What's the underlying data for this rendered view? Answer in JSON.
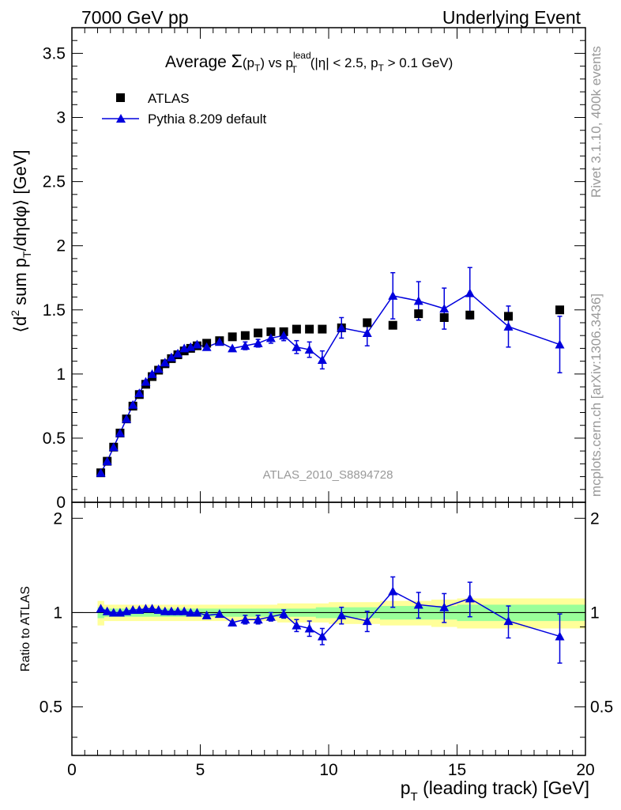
{
  "header": {
    "left": "7000 GeV pp",
    "right": "Underlying Event"
  },
  "side_labels": {
    "rivet": "Rivet 3.1.10,  400k events",
    "mcplots": "mcplots.cern.ch [arXiv:1306.3436]"
  },
  "colors": {
    "data": "#000000",
    "mc": "#0000dd",
    "band_inner": "#99ff99",
    "band_outer": "#ffff99"
  },
  "chart_data": [
    {
      "type": "scatter",
      "title": "Average Σ(pT) vs pT lead (|η| < 2.5, pT > 0.1 GeV)",
      "title_parts": {
        "prefix": "Average ",
        "sigma": "Σ",
        "sigma_arg": "(p",
        "sigma_sub": "T",
        "sigma_close": ")",
        "vs": " vs p",
        "lead_sup": "lead",
        "lead_sub": "T",
        "cut_a": " (|η| < 2.5, p",
        "cut_sub": "T",
        "cut_b": " > 0.1 GeV)"
      },
      "ylabel": "⟨d² sum pT/dηdφ⟩ [GeV]",
      "ylabel_parts": {
        "open": "⟨d",
        "sup": "2",
        "mid": " sum p",
        "sub": "T",
        "close": "/dηdφ⟩ [GeV]"
      },
      "watermark": "ATLAS_2010_S8894728",
      "xlim": [
        0,
        20
      ],
      "ylim": [
        0,
        3.7
      ],
      "yticks": [
        "0",
        "0.5",
        "1",
        "1.5",
        "2",
        "2.5",
        "3",
        "3.5"
      ],
      "legend": {
        "data": "ATLAS",
        "mc": "Pythia 8.209 default"
      },
      "series": [
        {
          "name": "ATLAS",
          "x": [
            1.125,
            1.375,
            1.625,
            1.875,
            2.125,
            2.375,
            2.625,
            2.875,
            3.125,
            3.375,
            3.625,
            3.875,
            4.125,
            4.375,
            4.625,
            4.875,
            5.25,
            5.75,
            6.25,
            6.75,
            7.25,
            7.75,
            8.25,
            8.75,
            9.25,
            9.75,
            10.5,
            11.5,
            12.5,
            13.5,
            14.5,
            15.5,
            17.0,
            19.0
          ],
          "y": [
            0.23,
            0.32,
            0.43,
            0.54,
            0.65,
            0.75,
            0.84,
            0.92,
            0.98,
            1.03,
            1.08,
            1.12,
            1.15,
            1.18,
            1.2,
            1.22,
            1.24,
            1.26,
            1.29,
            1.3,
            1.32,
            1.33,
            1.33,
            1.35,
            1.35,
            1.35,
            1.36,
            1.4,
            1.38,
            1.47,
            1.44,
            1.46,
            1.45,
            1.5
          ]
        },
        {
          "name": "Pythia 8.209 default",
          "x": [
            1.125,
            1.375,
            1.625,
            1.875,
            2.125,
            2.375,
            2.625,
            2.875,
            3.125,
            3.375,
            3.625,
            3.875,
            4.125,
            4.375,
            4.625,
            4.875,
            5.25,
            5.75,
            6.25,
            6.75,
            7.25,
            7.75,
            8.25,
            8.75,
            9.25,
            9.75,
            10.5,
            11.5,
            12.5,
            13.5,
            14.5,
            15.5,
            17.0,
            19.0
          ],
          "y": [
            0.23,
            0.32,
            0.43,
            0.54,
            0.65,
            0.76,
            0.85,
            0.94,
            1.0,
            1.04,
            1.09,
            1.13,
            1.16,
            1.2,
            1.21,
            1.23,
            1.21,
            1.25,
            1.2,
            1.22,
            1.24,
            1.28,
            1.3,
            1.21,
            1.19,
            1.11,
            1.36,
            1.32,
            1.61,
            1.57,
            1.51,
            1.63,
            1.37,
            1.23
          ],
          "err": [
            0.01,
            0.01,
            0.01,
            0.01,
            0.01,
            0.01,
            0.01,
            0.01,
            0.01,
            0.01,
            0.01,
            0.01,
            0.01,
            0.01,
            0.01,
            0.01,
            0.02,
            0.02,
            0.02,
            0.03,
            0.03,
            0.04,
            0.04,
            0.05,
            0.06,
            0.07,
            0.08,
            0.1,
            0.18,
            0.15,
            0.16,
            0.2,
            0.16,
            0.22
          ]
        }
      ]
    },
    {
      "type": "scatter",
      "ylabel": "Ratio to ATLAS",
      "xlabel": "pT (leading track) [GeV]",
      "xlabel_parts": {
        "p": "p",
        "sub": "T",
        "rest": " (leading track) [GeV]"
      },
      "xlim": [
        0,
        20
      ],
      "ylim": [
        0.35,
        2.25
      ],
      "xticks": [
        "0",
        "5",
        "10",
        "15",
        "20"
      ],
      "yticks": [
        "0.5",
        "1",
        "2"
      ],
      "bands": {
        "x_edges": [
          1.0,
          1.25,
          1.5,
          1.75,
          2.0,
          2.25,
          2.5,
          2.75,
          3.0,
          3.25,
          3.5,
          3.75,
          4.0,
          4.25,
          4.5,
          4.75,
          5.0,
          5.5,
          6.0,
          6.5,
          7.0,
          7.5,
          8.0,
          8.5,
          9.0,
          9.5,
          10.0,
          11.0,
          12.0,
          13.0,
          14.0,
          15.0,
          16.0,
          18.0,
          20.0
        ],
        "inner": [
          0.04,
          0.03,
          0.03,
          0.03,
          0.03,
          0.03,
          0.03,
          0.03,
          0.03,
          0.03,
          0.03,
          0.03,
          0.03,
          0.03,
          0.03,
          0.03,
          0.03,
          0.03,
          0.03,
          0.03,
          0.03,
          0.03,
          0.03,
          0.03,
          0.03,
          0.04,
          0.04,
          0.04,
          0.05,
          0.05,
          0.05,
          0.06,
          0.06,
          0.06
        ],
        "outer": [
          0.09,
          0.06,
          0.06,
          0.06,
          0.06,
          0.06,
          0.06,
          0.06,
          0.06,
          0.06,
          0.06,
          0.06,
          0.06,
          0.06,
          0.06,
          0.06,
          0.06,
          0.06,
          0.06,
          0.06,
          0.06,
          0.06,
          0.07,
          0.07,
          0.07,
          0.07,
          0.08,
          0.08,
          0.09,
          0.09,
          0.1,
          0.11,
          0.11,
          0.11
        ]
      },
      "series": [
        {
          "name": "Pythia 8.209 default",
          "x": [
            1.125,
            1.375,
            1.625,
            1.875,
            2.125,
            2.375,
            2.625,
            2.875,
            3.125,
            3.375,
            3.625,
            3.875,
            4.125,
            4.375,
            4.625,
            4.875,
            5.25,
            5.75,
            6.25,
            6.75,
            7.25,
            7.75,
            8.25,
            8.75,
            9.25,
            9.75,
            10.5,
            11.5,
            12.5,
            13.5,
            14.5,
            15.5,
            17.0,
            19.0
          ],
          "y": [
            1.03,
            1.01,
            1.0,
            1.0,
            1.01,
            1.02,
            1.02,
            1.03,
            1.03,
            1.02,
            1.01,
            1.01,
            1.01,
            1.01,
            1.0,
            1.0,
            0.98,
            0.99,
            0.93,
            0.95,
            0.95,
            0.97,
            0.99,
            0.91,
            0.89,
            0.84,
            0.98,
            0.94,
            1.17,
            1.06,
            1.04,
            1.11,
            0.94,
            0.84
          ],
          "err": [
            0.01,
            0.01,
            0.01,
            0.01,
            0.01,
            0.01,
            0.01,
            0.01,
            0.01,
            0.01,
            0.01,
            0.01,
            0.01,
            0.01,
            0.01,
            0.01,
            0.02,
            0.02,
            0.02,
            0.03,
            0.03,
            0.03,
            0.03,
            0.04,
            0.05,
            0.05,
            0.06,
            0.07,
            0.13,
            0.1,
            0.11,
            0.14,
            0.11,
            0.15
          ]
        }
      ]
    }
  ]
}
